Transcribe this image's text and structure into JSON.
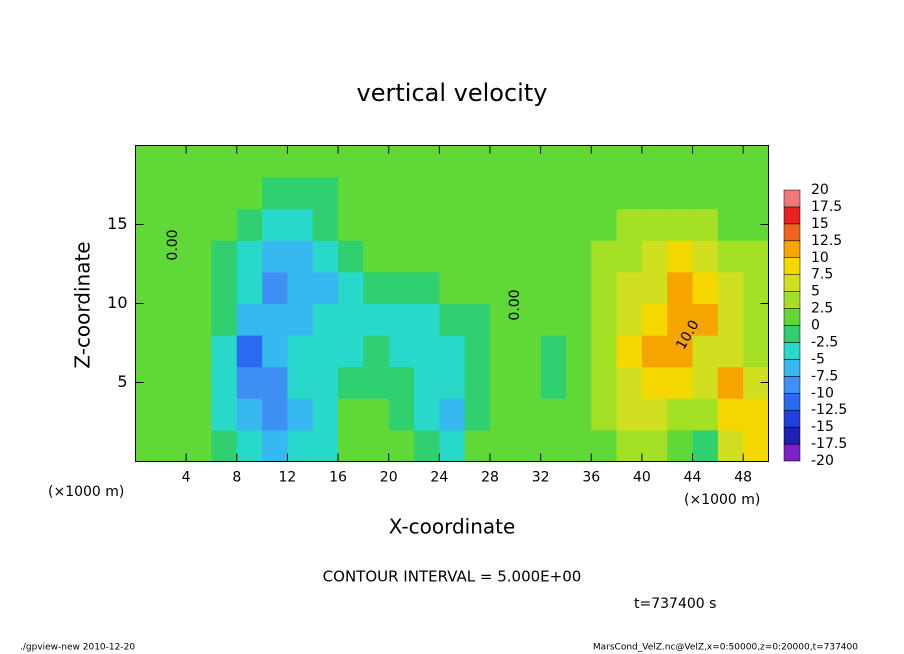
{
  "chart_data": {
    "type": "heatmap",
    "title": "vertical velocity",
    "xlabel": "X-coordinate",
    "ylabel": "Z-coordinate",
    "x_unit_left": "(×1000 m)",
    "x_unit_right": "(×1000 m)",
    "contour_interval": "CONTOUR INTERVAL = 5.000E+00",
    "time_label": "t=737400 s",
    "footer_left": "./gpview-new  2010-12-20",
    "footer_right": "MarsCond_VelZ.nc@VelZ,x=0:50000,z=0:20000,t=737400",
    "annotations": [
      "0.00",
      "0.00",
      "10.0"
    ],
    "xlim": [
      0,
      50
    ],
    "ylim": [
      0,
      20
    ],
    "xticks": [
      4,
      8,
      12,
      16,
      20,
      24,
      28,
      32,
      36,
      40,
      44,
      48
    ],
    "yticks": [
      5,
      10,
      15
    ],
    "x": [
      1,
      3,
      5,
      7,
      9,
      11,
      13,
      15,
      17,
      19,
      21,
      23,
      25,
      27,
      29,
      31,
      33,
      35,
      37,
      39,
      41,
      43,
      45,
      47,
      49
    ],
    "z": [
      1,
      3,
      5,
      7,
      9,
      11,
      13,
      15,
      17,
      19
    ],
    "values": [
      [
        1,
        1,
        1,
        -1,
        -4,
        -6,
        -5,
        -3,
        0,
        1,
        0,
        -1,
        -3,
        0,
        1,
        2,
        2,
        1,
        2,
        3,
        4,
        2,
        -2,
        6,
        8
      ],
      [
        1,
        1,
        0,
        -3,
        -7,
        -8,
        -6,
        -4,
        0,
        1,
        -2,
        -4,
        -6,
        -1,
        1,
        2,
        2,
        2,
        3,
        5,
        7,
        4,
        3,
        9,
        9
      ],
      [
        1,
        1,
        0,
        -4,
        -8,
        -8,
        -5,
        -4,
        -2,
        -1,
        -2,
        -4,
        -4,
        -2,
        1,
        0,
        -1,
        2,
        3,
        7,
        9,
        8,
        6,
        10,
        6
      ],
      [
        1,
        1,
        0,
        -4,
        -11,
        -7,
        -5,
        -4,
        -3,
        -2,
        -3,
        -4,
        -3,
        -2,
        1,
        1,
        -1,
        2,
        4,
        8,
        11,
        10,
        7,
        6,
        4
      ],
      [
        1,
        1,
        0,
        -2,
        -6,
        -7,
        -7,
        -5,
        -3,
        -3,
        -4,
        -3,
        -2,
        -1,
        0,
        1,
        1,
        2,
        4,
        7,
        9,
        10,
        10,
        5,
        3
      ],
      [
        1,
        1,
        0,
        -1,
        -5,
        -9,
        -7,
        -6,
        -3,
        -1,
        -1,
        -1,
        0,
        0,
        0,
        1,
        2,
        2,
        3,
        5,
        7,
        11,
        9,
        5,
        3
      ],
      [
        1,
        1,
        0,
        -1,
        -4,
        -7,
        -7,
        -5,
        -2,
        0,
        0,
        0,
        0,
        0,
        0,
        1,
        2,
        2,
        3,
        4,
        5,
        9,
        6,
        4,
        3
      ],
      [
        1,
        1,
        0,
        0,
        -2,
        -3,
        -3,
        -2,
        0,
        0,
        0,
        0,
        0,
        0,
        0,
        1,
        1,
        2,
        2,
        3,
        4,
        4,
        3,
        2,
        2
      ],
      [
        1,
        1,
        0,
        0,
        0,
        -1,
        -1,
        -1,
        0,
        0,
        0,
        0,
        0,
        0,
        0,
        0,
        1,
        1,
        1,
        2,
        2,
        2,
        1,
        1,
        1
      ],
      [
        1,
        1,
        0,
        0,
        0,
        0,
        0,
        0,
        0,
        0,
        0,
        0,
        0,
        0,
        0,
        0,
        1,
        1,
        1,
        1,
        1,
        1,
        1,
        1,
        1
      ]
    ],
    "levels": [
      -20,
      -17.5,
      -15,
      -12.5,
      -10,
      -7.5,
      -5,
      -2.5,
      0,
      2.5,
      5,
      7.5,
      10,
      12.5,
      15,
      17.5,
      20
    ],
    "colors": [
      "#7a22c8",
      "#2020b0",
      "#1f3fe0",
      "#2a6af0",
      "#3f90f5",
      "#38b8f0",
      "#28d8c8",
      "#30d070",
      "#60d838",
      "#a4e024",
      "#d0e020",
      "#f4d800",
      "#f8a400",
      "#f06420",
      "#e82020",
      "#f07878"
    ]
  }
}
